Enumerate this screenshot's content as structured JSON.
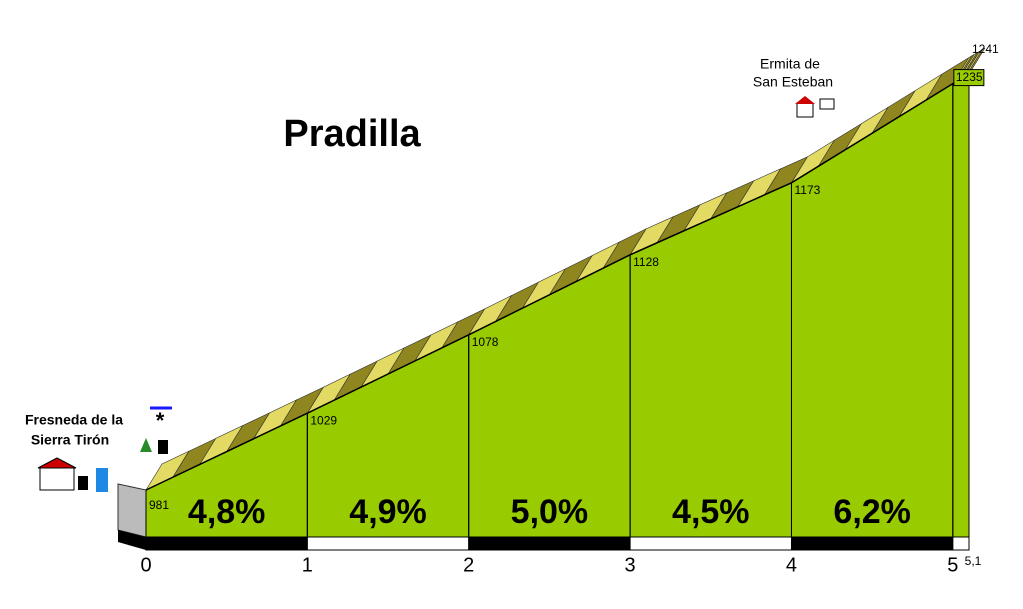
{
  "chart_data": {
    "type": "profile",
    "title": "Pradilla",
    "x": [
      0,
      1,
      2,
      3,
      4,
      5,
      5.1
    ],
    "values": [
      981,
      1029,
      1078,
      1128,
      1173,
      1235,
      1241
    ],
    "xlim": [
      0,
      5.1
    ],
    "xticks": [
      0,
      1,
      2,
      3,
      4,
      5,
      {
        "value": 5.1,
        "label": "5,1"
      }
    ],
    "segments": {
      "values": [
        4.8,
        4.9,
        5.0,
        4.5,
        6.2
      ],
      "value_labels": [
        "4,8%",
        "4,9%",
        "5,0%",
        "4,5%",
        "6,2%"
      ]
    },
    "places": {
      "start": [
        "Fresneda de la",
        "Sierra Tirón"
      ],
      "summit": [
        "Ermita de",
        "San Esteban"
      ]
    },
    "color": "#99cc00"
  }
}
